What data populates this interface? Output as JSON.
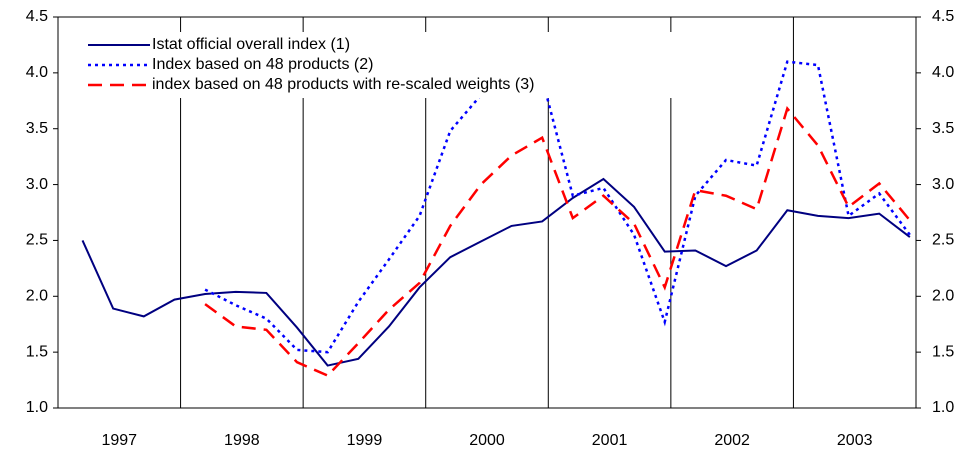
{
  "chart_data": {
    "type": "line",
    "categories": [
      "1997",
      null,
      null,
      null,
      "1998",
      null,
      null,
      null,
      "1999",
      null,
      null,
      null,
      "2000",
      null,
      null,
      null,
      "2001",
      null,
      null,
      null,
      "2002",
      null,
      null,
      null,
      "2003",
      null,
      null,
      null
    ],
    "series": [
      {
        "name": "Istat official overall index (1)",
        "color": "#000080",
        "style": "solid",
        "values": [
          2.5,
          1.89,
          1.82,
          1.97,
          2.02,
          2.04,
          2.03,
          1.72,
          1.38,
          1.44,
          1.73,
          2.08,
          2.35,
          2.49,
          2.63,
          2.67,
          2.88,
          3.05,
          2.8,
          2.4,
          2.41,
          2.27,
          2.41,
          2.77,
          2.72,
          2.7,
          2.74,
          2.53
        ]
      },
      {
        "name": "Index based on 48 products (2)",
        "color": "#0000ff",
        "style": "dotted",
        "values": [
          null,
          null,
          null,
          null,
          2.06,
          1.92,
          1.8,
          1.52,
          1.5,
          1.95,
          2.33,
          2.72,
          3.48,
          3.8,
          4.05,
          3.95,
          2.9,
          2.97,
          2.55,
          1.77,
          2.9,
          3.22,
          3.17,
          4.1,
          4.07,
          2.72,
          2.92,
          2.55
        ]
      },
      {
        "name": "index based on 48 products with re-scaled weights (3)",
        "color": "#ff0000",
        "style": "dashed",
        "values": [
          null,
          null,
          null,
          null,
          1.93,
          1.73,
          1.7,
          1.41,
          1.29,
          1.58,
          1.88,
          2.12,
          2.63,
          3.0,
          3.26,
          3.42,
          2.7,
          2.9,
          2.65,
          2.08,
          2.95,
          2.9,
          2.78,
          3.68,
          3.35,
          2.8,
          3.01,
          2.68
        ]
      }
    ],
    "ylim": [
      1.0,
      4.5
    ],
    "yticks": [
      {
        "value": 1.0,
        "label": "1.0"
      },
      {
        "value": 1.5,
        "label": "1.5"
      },
      {
        "value": 2.0,
        "label": "2.0"
      },
      {
        "value": 2.5,
        "label": "2.5"
      },
      {
        "value": 3.0,
        "label": "3.0"
      },
      {
        "value": 3.5,
        "label": "3.5"
      },
      {
        "value": 4.0,
        "label": "4.0"
      },
      {
        "value": 4.5,
        "label": "4.5"
      }
    ],
    "y2lim": [
      1.0,
      4.5
    ],
    "y2ticks": [
      {
        "value": 1.0,
        "label": "1.0"
      },
      {
        "value": 1.5,
        "label": "1.5"
      },
      {
        "value": 2.0,
        "label": "2.0"
      },
      {
        "value": 2.5,
        "label": "2.5"
      },
      {
        "value": 3.0,
        "label": "3.0"
      },
      {
        "value": 3.5,
        "label": "3.5"
      },
      {
        "value": 4.0,
        "label": "4.0"
      },
      {
        "value": 4.5,
        "label": "4.5"
      }
    ],
    "legend": "upper left"
  }
}
